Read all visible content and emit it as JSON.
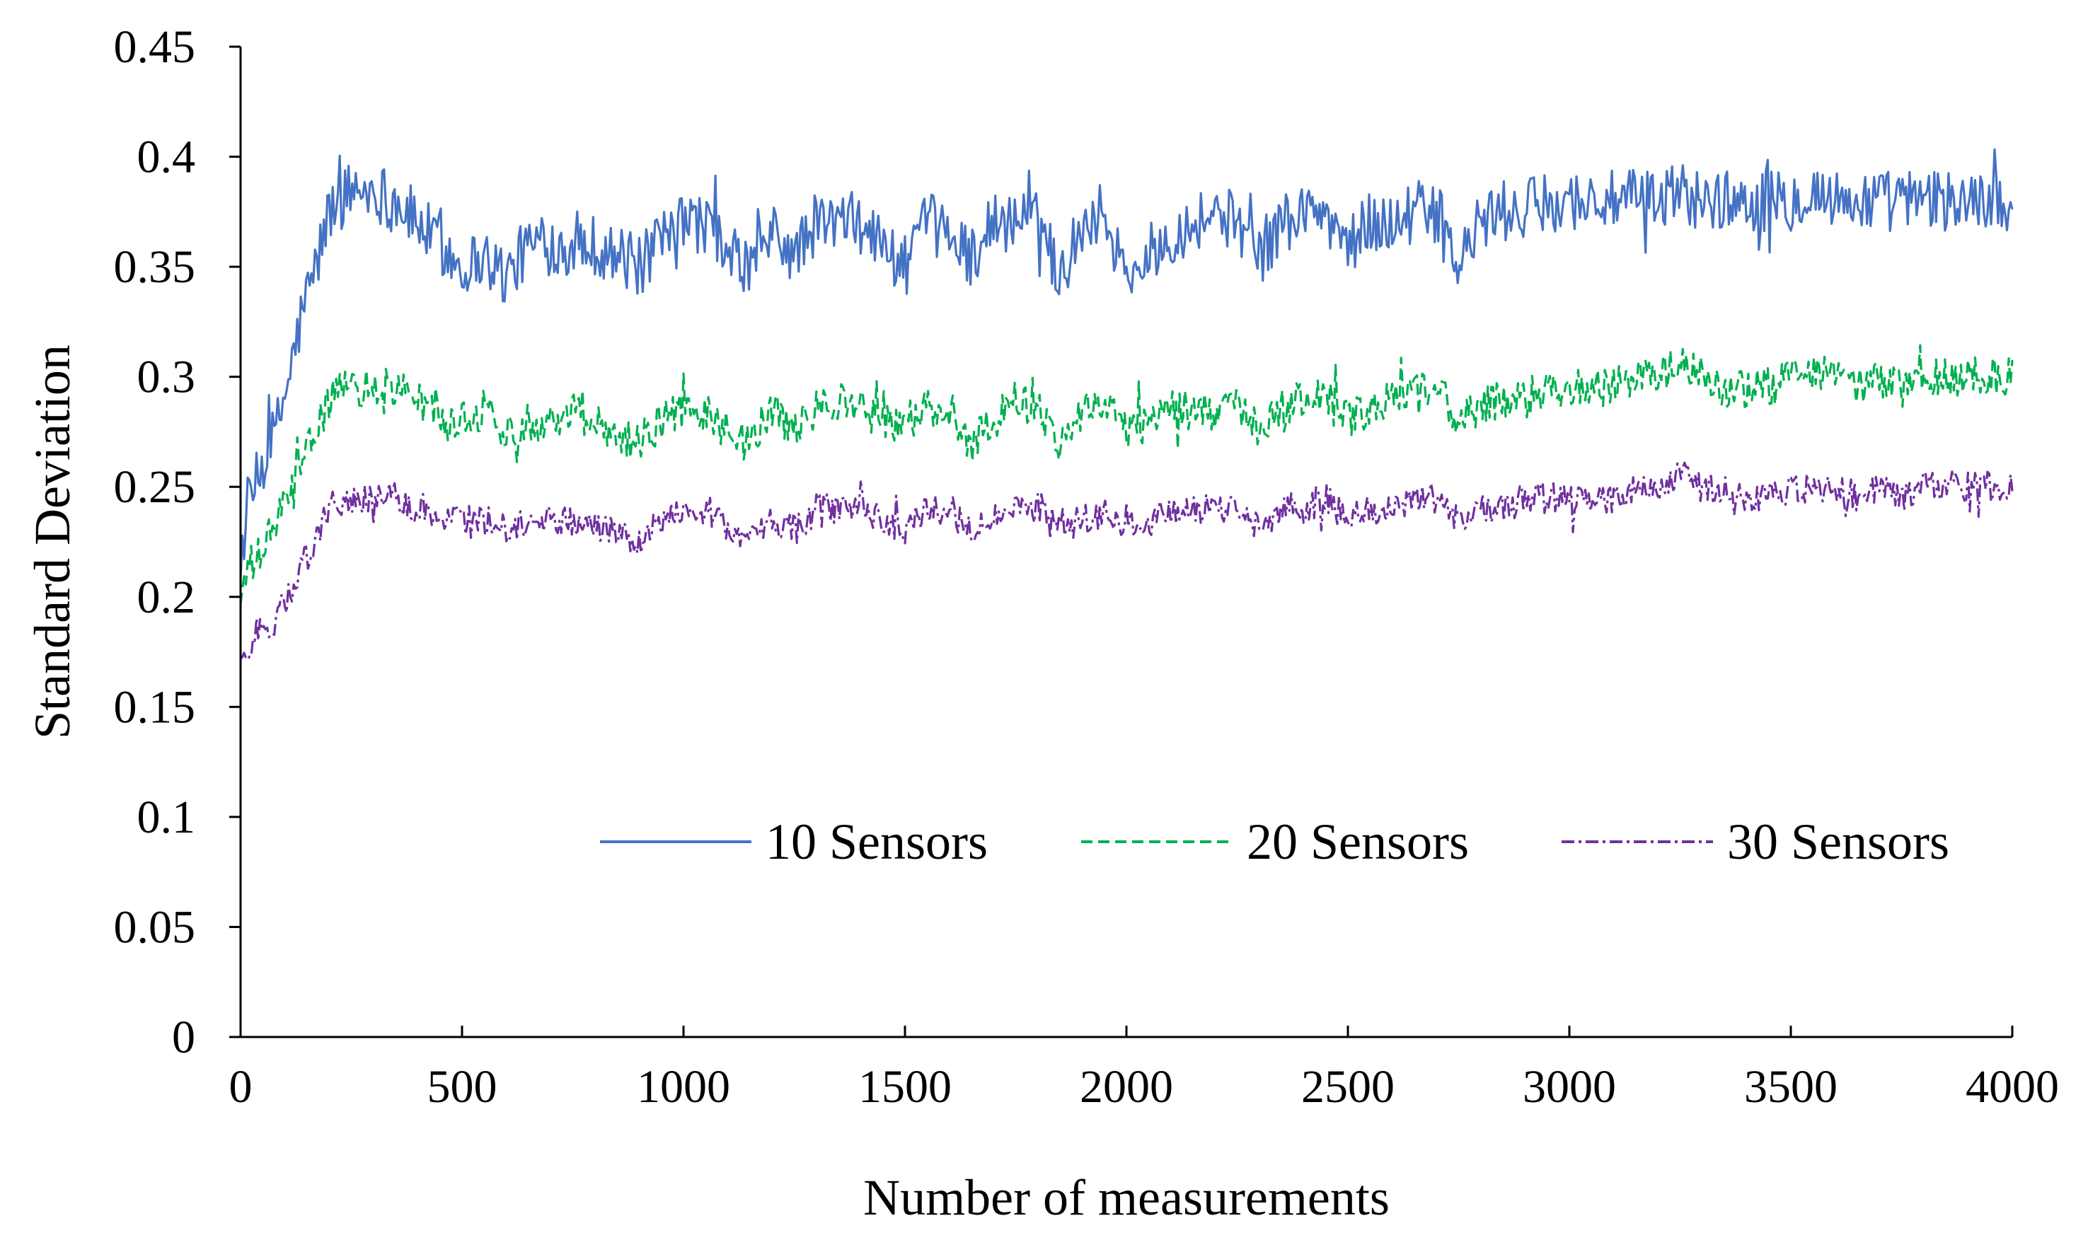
{
  "chart_data": {
    "type": "line",
    "title": "",
    "xlabel": "Number of measurements",
    "ylabel": "Standard Deviation",
    "xlim": [
      0,
      4000
    ],
    "ylim": [
      0,
      0.45
    ],
    "x_ticks": [
      "0",
      "500",
      "1000",
      "1500",
      "2000",
      "2500",
      "3000",
      "3500",
      "4000"
    ],
    "y_ticks": [
      "0",
      "0.05",
      "0.1",
      "0.15",
      "0.2",
      "0.25",
      "0.3",
      "0.35",
      "0.4",
      "0.45"
    ],
    "grid": false,
    "legend_position": "bottom-right",
    "series": [
      {
        "name": "10 Sensors",
        "color": "#4472C4",
        "dash": "solid",
        "noise": 0.014,
        "x": [
          0,
          25,
          50,
          80,
          110,
          140,
          170,
          200,
          250,
          300,
          350,
          400,
          450,
          500,
          550,
          600,
          650,
          700,
          750,
          800,
          850,
          900,
          950,
          1000,
          1050,
          1100,
          1150,
          1200,
          1250,
          1300,
          1350,
          1400,
          1450,
          1500,
          1550,
          1600,
          1650,
          1700,
          1750,
          1800,
          1850,
          1900,
          1950,
          2000,
          2050,
          2100,
          2150,
          2200,
          2250,
          2300,
          2350,
          2400,
          2450,
          2500,
          2550,
          2600,
          2650,
          2700,
          2750,
          2800,
          2850,
          2900,
          2950,
          3000,
          3050,
          3100,
          3150,
          3200,
          3250,
          3300,
          3350,
          3400,
          3450,
          3500,
          3550,
          3600,
          3650,
          3700,
          3750,
          3800,
          3850,
          3900,
          3950,
          4000
        ],
        "values": [
          0.22,
          0.245,
          0.26,
          0.275,
          0.3,
          0.33,
          0.35,
          0.375,
          0.385,
          0.385,
          0.38,
          0.37,
          0.36,
          0.35,
          0.355,
          0.345,
          0.36,
          0.36,
          0.36,
          0.36,
          0.355,
          0.35,
          0.36,
          0.37,
          0.37,
          0.355,
          0.35,
          0.365,
          0.355,
          0.37,
          0.37,
          0.37,
          0.36,
          0.35,
          0.37,
          0.365,
          0.355,
          0.37,
          0.37,
          0.375,
          0.345,
          0.37,
          0.375,
          0.345,
          0.355,
          0.365,
          0.37,
          0.375,
          0.37,
          0.355,
          0.37,
          0.375,
          0.375,
          0.36,
          0.37,
          0.37,
          0.375,
          0.375,
          0.35,
          0.37,
          0.375,
          0.375,
          0.38,
          0.38,
          0.38,
          0.38,
          0.38,
          0.38,
          0.385,
          0.38,
          0.38,
          0.38,
          0.38,
          0.38,
          0.385,
          0.38,
          0.38,
          0.38,
          0.38,
          0.38,
          0.38,
          0.38,
          0.38,
          0.38
        ]
      },
      {
        "name": "20 Sensors",
        "color": "#00B050",
        "dash": "dashed",
        "noise": 0.009,
        "x": [
          0,
          25,
          50,
          80,
          110,
          140,
          170,
          200,
          250,
          300,
          350,
          400,
          450,
          500,
          550,
          600,
          650,
          700,
          750,
          800,
          850,
          900,
          950,
          1000,
          1050,
          1100,
          1150,
          1200,
          1250,
          1300,
          1350,
          1400,
          1450,
          1500,
          1550,
          1600,
          1650,
          1700,
          1750,
          1800,
          1850,
          1900,
          1950,
          2000,
          2050,
          2100,
          2150,
          2200,
          2250,
          2300,
          2350,
          2400,
          2450,
          2500,
          2550,
          2600,
          2650,
          2700,
          2750,
          2800,
          2850,
          2900,
          2950,
          3000,
          3050,
          3100,
          3150,
          3200,
          3250,
          3300,
          3350,
          3400,
          3450,
          3500,
          3550,
          3600,
          3650,
          3700,
          3750,
          3800,
          3850,
          3900,
          3950,
          4000
        ],
        "values": [
          0.2,
          0.215,
          0.22,
          0.235,
          0.245,
          0.26,
          0.275,
          0.29,
          0.295,
          0.295,
          0.295,
          0.29,
          0.28,
          0.28,
          0.285,
          0.275,
          0.28,
          0.28,
          0.285,
          0.28,
          0.275,
          0.27,
          0.28,
          0.285,
          0.285,
          0.275,
          0.27,
          0.285,
          0.275,
          0.285,
          0.29,
          0.285,
          0.28,
          0.28,
          0.285,
          0.285,
          0.27,
          0.28,
          0.29,
          0.285,
          0.27,
          0.285,
          0.29,
          0.275,
          0.28,
          0.285,
          0.285,
          0.285,
          0.285,
          0.275,
          0.285,
          0.29,
          0.29,
          0.28,
          0.285,
          0.29,
          0.295,
          0.295,
          0.28,
          0.285,
          0.29,
          0.29,
          0.295,
          0.295,
          0.295,
          0.295,
          0.3,
          0.3,
          0.305,
          0.3,
          0.295,
          0.295,
          0.295,
          0.3,
          0.3,
          0.3,
          0.295,
          0.3,
          0.295,
          0.3,
          0.3,
          0.3,
          0.3,
          0.3
        ]
      },
      {
        "name": "30 Sensors",
        "color": "#7030A0",
        "dash": "dash-dot",
        "noise": 0.007,
        "x": [
          0,
          25,
          50,
          80,
          110,
          140,
          170,
          200,
          250,
          300,
          350,
          400,
          450,
          500,
          550,
          600,
          650,
          700,
          750,
          800,
          850,
          900,
          950,
          1000,
          1050,
          1100,
          1150,
          1200,
          1250,
          1300,
          1350,
          1400,
          1450,
          1500,
          1550,
          1600,
          1650,
          1700,
          1750,
          1800,
          1850,
          1900,
          1950,
          2000,
          2050,
          2100,
          2150,
          2200,
          2250,
          2300,
          2350,
          2400,
          2450,
          2500,
          2550,
          2600,
          2650,
          2700,
          2750,
          2800,
          2850,
          2900,
          2950,
          3000,
          3050,
          3100,
          3150,
          3200,
          3250,
          3300,
          3350,
          3400,
          3450,
          3500,
          3550,
          3600,
          3650,
          3700,
          3750,
          3800,
          3850,
          3900,
          3950,
          4000
        ],
        "values": [
          0.17,
          0.18,
          0.185,
          0.19,
          0.2,
          0.215,
          0.225,
          0.24,
          0.245,
          0.245,
          0.245,
          0.24,
          0.235,
          0.235,
          0.235,
          0.23,
          0.235,
          0.235,
          0.235,
          0.23,
          0.23,
          0.225,
          0.235,
          0.24,
          0.24,
          0.23,
          0.225,
          0.235,
          0.23,
          0.24,
          0.24,
          0.24,
          0.235,
          0.23,
          0.24,
          0.24,
          0.23,
          0.235,
          0.24,
          0.24,
          0.23,
          0.235,
          0.24,
          0.23,
          0.235,
          0.24,
          0.24,
          0.24,
          0.24,
          0.23,
          0.24,
          0.24,
          0.245,
          0.235,
          0.24,
          0.24,
          0.245,
          0.245,
          0.235,
          0.24,
          0.24,
          0.245,
          0.245,
          0.245,
          0.245,
          0.245,
          0.25,
          0.25,
          0.255,
          0.25,
          0.25,
          0.245,
          0.245,
          0.25,
          0.25,
          0.25,
          0.245,
          0.25,
          0.245,
          0.25,
          0.25,
          0.25,
          0.25,
          0.25
        ]
      }
    ]
  }
}
